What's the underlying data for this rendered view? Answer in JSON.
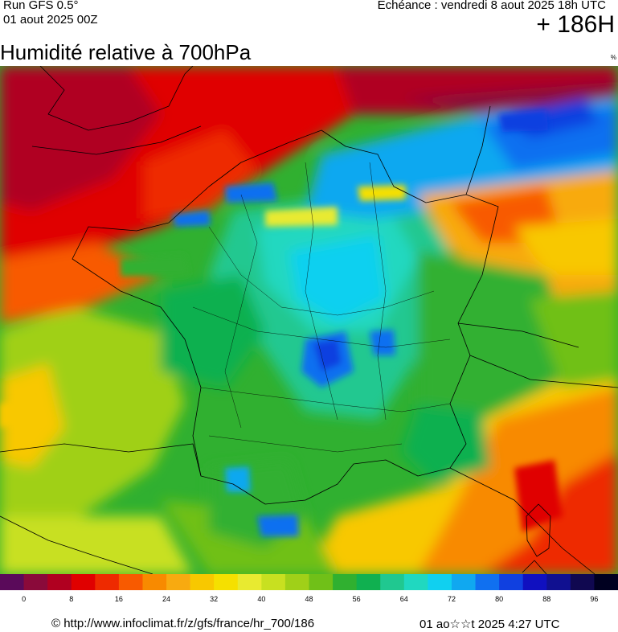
{
  "header": {
    "run_label": "Run GFS 0.5°",
    "run_date": "01 aout 2025 00Z",
    "echeance": "Echéance : vendredi 8 aout 2025 18h UTC",
    "lead_time": "+ 186H"
  },
  "title": "Humidité relative à 700hPa",
  "unit": "%",
  "legend": {
    "colors": [
      "#5a0a5a",
      "#8a0a3a",
      "#b00020",
      "#e00000",
      "#ee2a00",
      "#f85a00",
      "#f88a00",
      "#f8aa10",
      "#f8c800",
      "#f5e000",
      "#e8ea30",
      "#c8e020",
      "#a0d018",
      "#70c018",
      "#30b030",
      "#10b050",
      "#20c890",
      "#20d8c0",
      "#10d0f0",
      "#10a8f0",
      "#1070f0",
      "#1040e0",
      "#1010c0",
      "#101090",
      "#100850",
      "#000020"
    ],
    "ticks": [
      "0",
      "8",
      "16",
      "24",
      "32",
      "40",
      "48",
      "56",
      "64",
      "72",
      "80",
      "88",
      "96"
    ]
  },
  "footer": {
    "copyright": "© http://www.infoclimat.fr/z/gfs/france/hr_700/186",
    "generated": "01 ao☆☆t 2025  4:27 UTC"
  }
}
